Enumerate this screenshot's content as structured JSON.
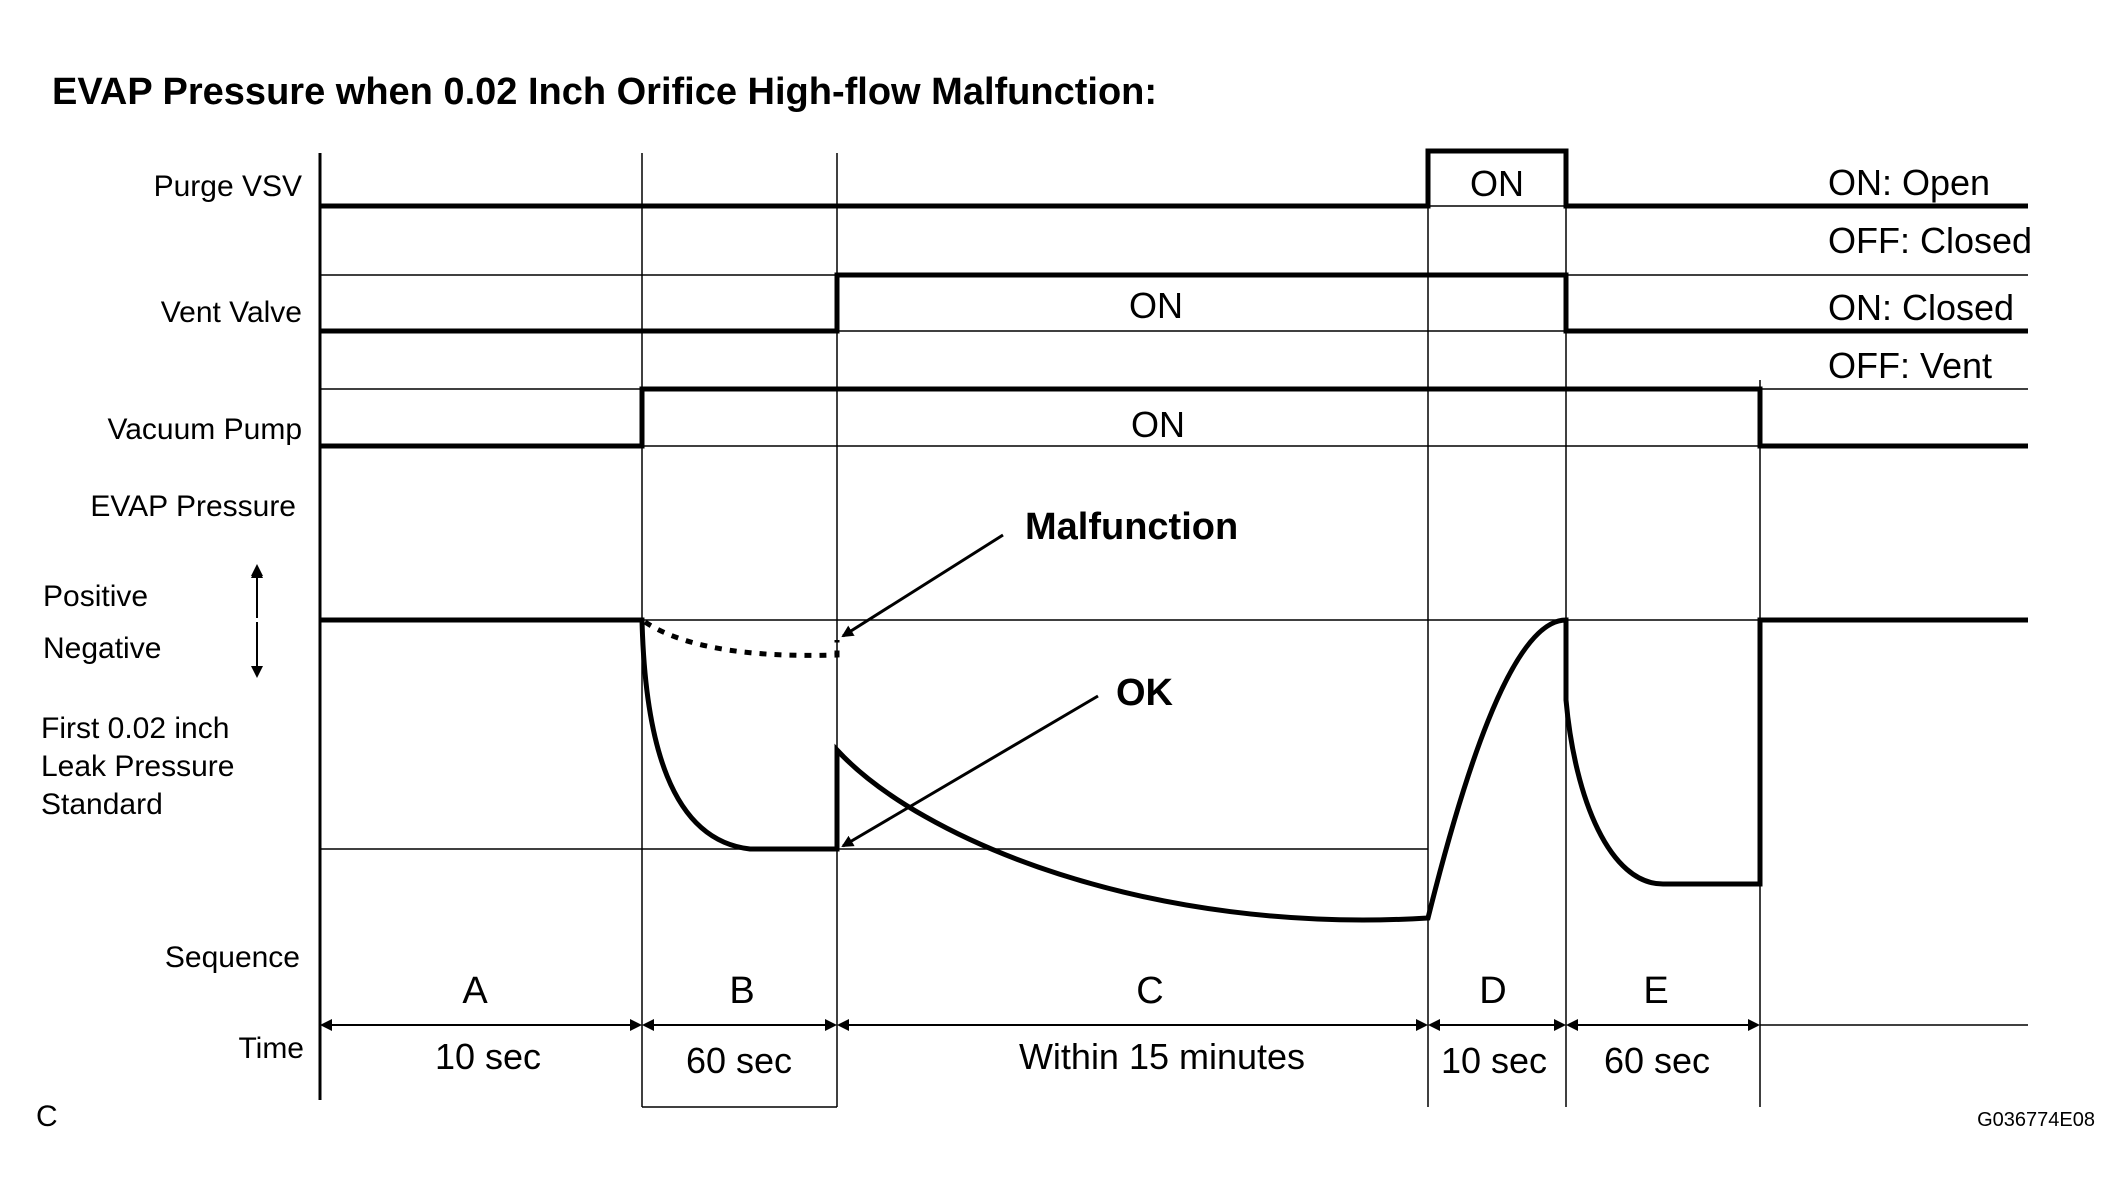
{
  "title": "EVAP Pressure when 0.02 Inch Orifice High-flow Malfunction:",
  "row_labels": {
    "purge_vsv": "Purge VSV",
    "vent_valve": "Vent Valve",
    "vacuum_pump": "Vacuum Pump",
    "evap_pressure": "EVAP Pressure",
    "positive": "Positive",
    "negative": "Negative",
    "leak_std_line1": "First 0.02 inch",
    "leak_std_line2": "Leak Pressure",
    "leak_std_line3": "Standard",
    "sequence": "Sequence",
    "time": "Time"
  },
  "signals": {
    "purge_on": "ON",
    "vent_on": "ON",
    "pump_on": "ON"
  },
  "legend": {
    "purge_on": "ON: Open",
    "purge_off": "OFF: Closed",
    "vent_on": "ON: Closed",
    "vent_off": "OFF: Vent"
  },
  "annotations": {
    "malfunction": "Malfunction",
    "ok": "OK"
  },
  "sequence": [
    {
      "name": "A",
      "time": "10 sec"
    },
    {
      "name": "B",
      "time": "60 sec"
    },
    {
      "name": "C",
      "time": "Within 15 minutes"
    },
    {
      "name": "D",
      "time": "10 sec"
    },
    {
      "name": "E",
      "time": "60 sec"
    }
  ],
  "corner_label": "C",
  "figure_code": "G036774E08"
}
